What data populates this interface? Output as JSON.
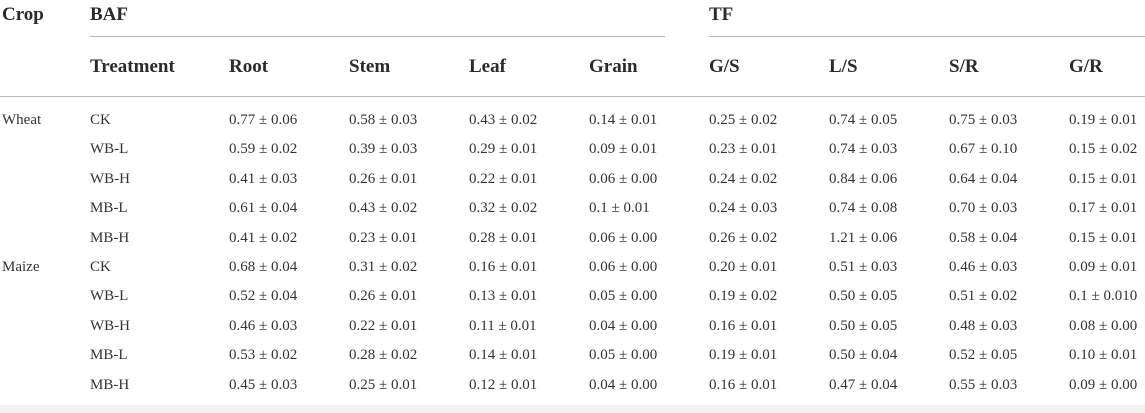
{
  "table": {
    "headers": {
      "crop": "Crop",
      "baf": "BAF",
      "tf": "TF",
      "treatment": "Treatment",
      "root": "Root",
      "stem": "Stem",
      "leaf": "Leaf",
      "grain": "Grain",
      "gs": "G/S",
      "ls": "L/S",
      "sr": "S/R",
      "gr": "G/R"
    },
    "rows": [
      {
        "crop": "Wheat",
        "treatment": "CK",
        "root": "0.77 ± 0.06",
        "stem": "0.58 ± 0.03",
        "leaf": "0.43 ± 0.02",
        "grain": "0.14 ± 0.01",
        "gs": "0.25 ± 0.02",
        "ls": "0.74 ± 0.05",
        "sr": "0.75 ± 0.03",
        "gr": "0.19 ± 0.01"
      },
      {
        "crop": "",
        "treatment": "WB-L",
        "root": "0.59 ± 0.02",
        "stem": "0.39 ± 0.03",
        "leaf": "0.29 ± 0.01",
        "grain": "0.09 ± 0.01",
        "gs": "0.23 ± 0.01",
        "ls": "0.74 ± 0.03",
        "sr": "0.67 ± 0.10",
        "gr": "0.15 ± 0.02"
      },
      {
        "crop": "",
        "treatment": "WB-H",
        "root": "0.41 ± 0.03",
        "stem": "0.26 ± 0.01",
        "leaf": "0.22 ± 0.01",
        "grain": "0.06 ± 0.00",
        "gs": "0.24 ± 0.02",
        "ls": "0.84 ± 0.06",
        "sr": "0.64 ± 0.04",
        "gr": "0.15 ± 0.01"
      },
      {
        "crop": "",
        "treatment": "MB-L",
        "root": "0.61 ± 0.04",
        "stem": "0.43 ± 0.02",
        "leaf": "0.32 ± 0.02",
        "grain": "0.1 ± 0.01",
        "gs": "0.24 ± 0.03",
        "ls": "0.74 ± 0.08",
        "sr": "0.70 ± 0.03",
        "gr": "0.17 ± 0.01"
      },
      {
        "crop": "",
        "treatment": "MB-H",
        "root": "0.41 ± 0.02",
        "stem": "0.23 ± 0.01",
        "leaf": "0.28 ± 0.01",
        "grain": "0.06 ± 0.00",
        "gs": "0.26 ± 0.02",
        "ls": "1.21 ± 0.06",
        "sr": "0.58 ± 0.04",
        "gr": "0.15 ± 0.01"
      },
      {
        "crop": "Maize",
        "treatment": "CK",
        "root": "0.68 ± 0.04",
        "stem": "0.31 ± 0.02",
        "leaf": "0.16 ± 0.01",
        "grain": "0.06 ± 0.00",
        "gs": "0.20 ± 0.01",
        "ls": "0.51 ± 0.03",
        "sr": "0.46 ± 0.03",
        "gr": "0.09 ± 0.01"
      },
      {
        "crop": "",
        "treatment": "WB-L",
        "root": "0.52 ± 0.04",
        "stem": "0.26 ± 0.01",
        "leaf": "0.13 ± 0.01",
        "grain": "0.05 ± 0.00",
        "gs": "0.19 ± 0.02",
        "ls": "0.50 ± 0.05",
        "sr": "0.51 ± 0.02",
        "gr": "0.1 ± 0.010"
      },
      {
        "crop": "",
        "treatment": "WB-H",
        "root": "0.46 ± 0.03",
        "stem": "0.22 ± 0.01",
        "leaf": "0.11 ± 0.01",
        "grain": "0.04 ± 0.00",
        "gs": "0.16 ± 0.01",
        "ls": "0.50 ± 0.05",
        "sr": "0.48 ± 0.03",
        "gr": "0.08 ± 0.00"
      },
      {
        "crop": "",
        "treatment": "MB-L",
        "root": "0.53 ± 0.02",
        "stem": "0.28 ± 0.02",
        "leaf": "0.14 ± 0.01",
        "grain": "0.05 ± 0.00",
        "gs": "0.19 ± 0.01",
        "ls": "0.50 ± 0.04",
        "sr": "0.52 ± 0.05",
        "gr": "0.10 ± 0.01"
      },
      {
        "crop": "",
        "treatment": "MB-H",
        "root": "0.45 ± 0.03",
        "stem": "0.25 ± 0.01",
        "leaf": "0.12 ± 0.01",
        "grain": "0.04 ± 0.00",
        "gs": "0.16 ± 0.01",
        "ls": "0.47 ± 0.04",
        "sr": "0.55 ± 0.03",
        "gr": "0.09 ± 0.00"
      }
    ]
  }
}
